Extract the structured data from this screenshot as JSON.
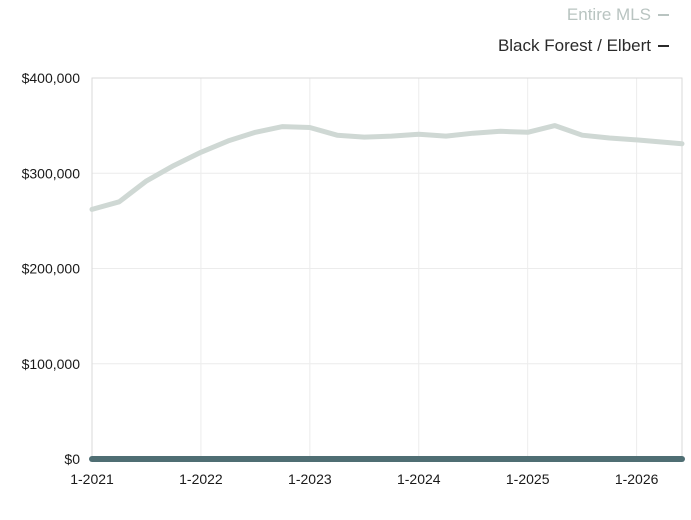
{
  "chart_data": {
    "type": "line",
    "title": "",
    "xlabel": "",
    "ylabel": "",
    "x_ticks": [
      "1-2021",
      "1-2022",
      "1-2023",
      "1-2024",
      "1-2025",
      "1-2026"
    ],
    "y_ticks": [
      "$0",
      "$100,000",
      "$200,000",
      "$300,000",
      "$400,000"
    ],
    "ylim": [
      0,
      400000
    ],
    "xlim": [
      "2021-01",
      "2026-06"
    ],
    "grid": true,
    "legend_position": "top-right",
    "series": [
      {
        "name": "Entire MLS",
        "color": "#cfd8d4",
        "points": [
          [
            "2021-01",
            262000
          ],
          [
            "2021-04",
            270000
          ],
          [
            "2021-07",
            292000
          ],
          [
            "2021-10",
            308000
          ],
          [
            "2022-01",
            322000
          ],
          [
            "2022-04",
            334000
          ],
          [
            "2022-07",
            343000
          ],
          [
            "2022-10",
            349000
          ],
          [
            "2023-01",
            348000
          ],
          [
            "2023-04",
            340000
          ],
          [
            "2023-07",
            338000
          ],
          [
            "2023-10",
            339000
          ],
          [
            "2024-01",
            341000
          ],
          [
            "2024-04",
            339000
          ],
          [
            "2024-07",
            342000
          ],
          [
            "2024-10",
            344000
          ],
          [
            "2025-01",
            343000
          ],
          [
            "2025-04",
            350000
          ],
          [
            "2025-07",
            340000
          ],
          [
            "2025-10",
            337000
          ],
          [
            "2026-01",
            335000
          ],
          [
            "2026-06",
            331000
          ]
        ]
      },
      {
        "name": "Black Forest / Elbert",
        "color": "#4f6e73",
        "points": [
          [
            "2021-01",
            0
          ],
          [
            "2026-06",
            0
          ]
        ]
      }
    ]
  }
}
